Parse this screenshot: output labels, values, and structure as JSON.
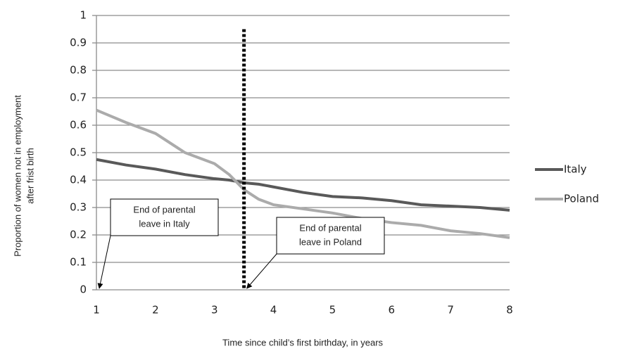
{
  "chart_data": {
    "type": "line",
    "y_label": [
      "Proportion of women not in employment",
      "after frist birth"
    ],
    "x_label": "Time since child’s first birthday, in years",
    "x": [
      1,
      1.5,
      2,
      2.5,
      3,
      3.25,
      3.5,
      3.75,
      4,
      4.5,
      5,
      5.5,
      6,
      6.5,
      7,
      7.5,
      8
    ],
    "series": [
      {
        "name": "Italy",
        "color": "#595959",
        "values": [
          0.475,
          0.455,
          0.44,
          0.42,
          0.405,
          0.4,
          0.39,
          0.385,
          0.375,
          0.355,
          0.34,
          0.335,
          0.325,
          0.31,
          0.305,
          0.3,
          0.29
        ]
      },
      {
        "name": "Poland",
        "color": "#ababab",
        "values": [
          0.655,
          0.61,
          0.57,
          0.5,
          0.46,
          0.42,
          0.365,
          0.33,
          0.31,
          0.295,
          0.28,
          0.26,
          0.245,
          0.235,
          0.215,
          0.205,
          0.19
        ]
      }
    ],
    "xlim": [
      1,
      8
    ],
    "xticks": [
      1,
      2,
      3,
      4,
      5,
      6,
      7,
      8
    ],
    "ylim": [
      0,
      1
    ],
    "yticks": [
      0,
      0.1,
      0.2,
      0.3,
      0.4,
      0.5,
      0.6,
      0.7,
      0.8,
      0.9,
      1
    ],
    "grid": true,
    "legend": "right",
    "vline": {
      "x": 3.5,
      "ymax": 0.95
    },
    "annotations": [
      {
        "lines": [
          "End of parental",
          "leave in Italy"
        ],
        "x": 1,
        "y": 0
      },
      {
        "lines": [
          "End of parental",
          "leave in Poland"
        ],
        "x": 3.5,
        "y": 0
      }
    ]
  }
}
